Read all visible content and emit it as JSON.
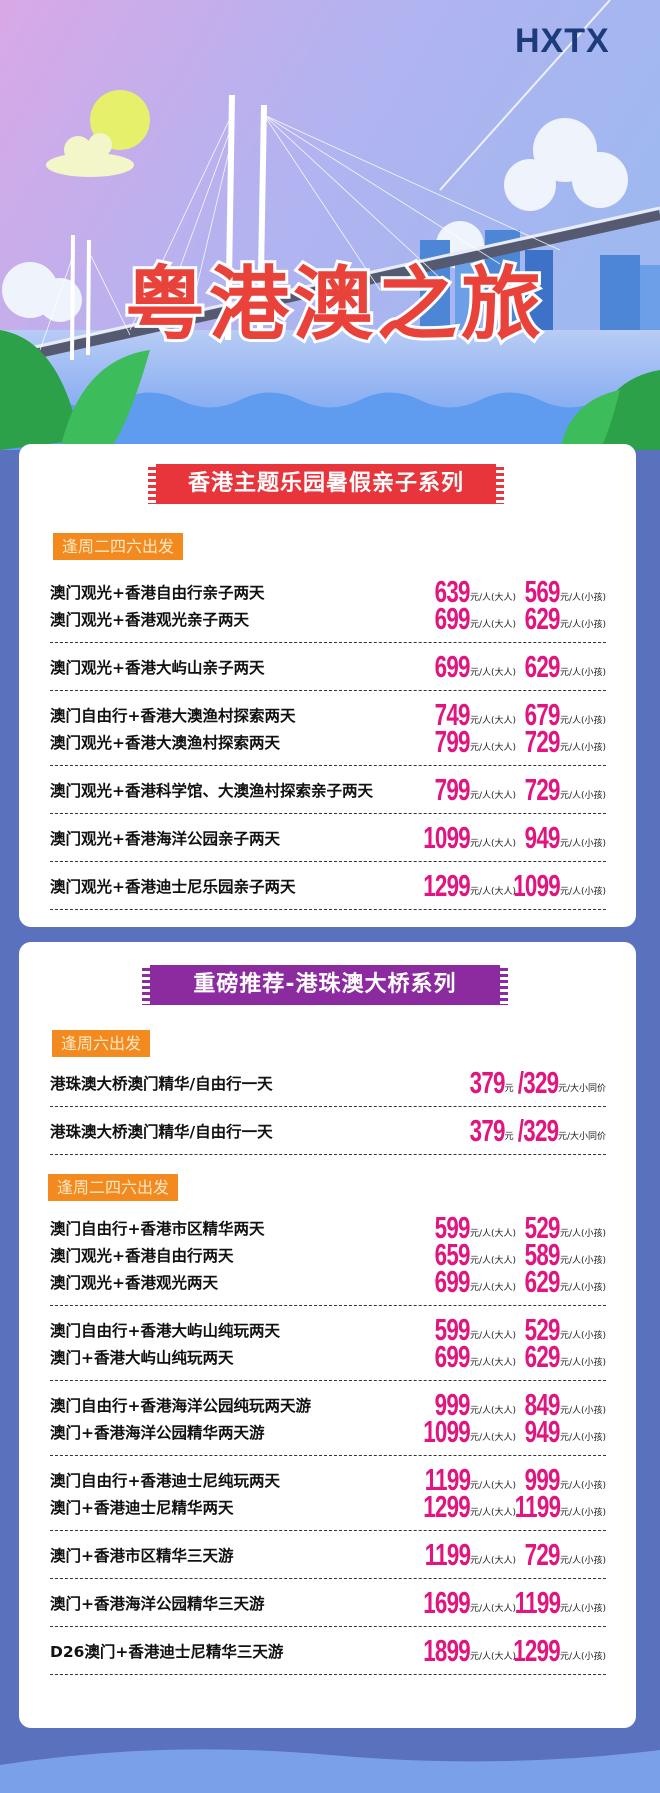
{
  "header": {
    "logo": "HXTX",
    "title": "粤港澳之旅"
  },
  "colors": {
    "background": "#5a72bd",
    "price": "#e0157f",
    "banner_red": "#e8343b",
    "banner_purple": "#8b2b9f",
    "tag_orange": "#f28a1f",
    "title_red": "#e8423a"
  },
  "units": {
    "adult": "元/人(大人)",
    "child": "元/人(小孩)",
    "yuan": "元",
    "same": "元/大小同价"
  },
  "cards": [
    {
      "banner": "香港主题乐园暑假亲子系列",
      "sections": [
        {
          "tag": "逢周二四六出发",
          "groups": [
            [
              {
                "name": "澳门观光+香港自由行亲子两天",
                "adult": "639",
                "child": "569"
              },
              {
                "name": "澳门观光+香港观光亲子两天",
                "adult": "699",
                "child": "629"
              }
            ],
            [
              {
                "name": "澳门观光+香港大屿山亲子两天",
                "adult": "699",
                "child": "629"
              }
            ],
            [
              {
                "name": "澳门自由行+香港大澳渔村探索两天",
                "adult": "749",
                "child": "679"
              },
              {
                "name": "澳门观光+香港大澳渔村探索两天",
                "adult": "799",
                "child": "729"
              }
            ],
            [
              {
                "name": "澳门观光+香港科学馆、大澳渔村探索亲子两天",
                "adult": "799",
                "child": "729"
              }
            ],
            [
              {
                "name": "澳门观光+香港海洋公园亲子两天",
                "adult": "1099",
                "child": "949"
              }
            ],
            [
              {
                "name": "澳门观光+香港迪士尼乐园亲子两天",
                "adult": "1299",
                "child": "1099"
              }
            ]
          ]
        }
      ]
    },
    {
      "banner": "重磅推荐-港珠澳大桥系列",
      "sections": [
        {
          "tag": "逢周六出发",
          "groups": [
            [
              {
                "name": "港珠澳大桥澳门精华/自由行一天",
                "price1": "379",
                "price2": "/329"
              }
            ],
            [
              {
                "name": "港珠澳大桥澳门精华/自由行一天",
                "price1": "379",
                "price2": "/329"
              }
            ]
          ]
        },
        {
          "tag": "逢周二四六出发",
          "groups": [
            [
              {
                "name": "澳门自由行+香港市区精华两天",
                "adult": "599",
                "child": "529"
              },
              {
                "name": "澳门观光+香港自由行两天",
                "adult": "659",
                "child": "589"
              },
              {
                "name": "澳门观光+香港观光两天",
                "adult": "699",
                "child": "629"
              }
            ],
            [
              {
                "name": "澳门自由行+香港大屿山纯玩两天",
                "adult": "599",
                "child": "529"
              },
              {
                "name": "澳门+香港大屿山纯玩两天",
                "adult": "699",
                "child": "629"
              }
            ],
            [
              {
                "name": "澳门自由行+香港海洋公园纯玩两天游",
                "adult": "999",
                "child": "849"
              },
              {
                "name": "澳门+香港海洋公园精华两天游",
                "adult": "1099",
                "child": "949"
              }
            ],
            [
              {
                "name": "澳门自由行+香港迪士尼纯玩两天",
                "adult": "1199",
                "child": "999"
              },
              {
                "name": "澳门+香港迪士尼精华两天",
                "adult": "1299",
                "child": "1199"
              }
            ],
            [
              {
                "name": "澳门+香港市区精华三天游",
                "adult": "1199",
                "child": "729"
              }
            ],
            [
              {
                "name": "澳门+香港海洋公园精华三天游",
                "adult": "1699",
                "child": "1199"
              }
            ],
            [
              {
                "name": "D26澳门+香港迪士尼精华三天游",
                "adult": "1899",
                "child": "1299"
              }
            ]
          ]
        }
      ]
    }
  ]
}
